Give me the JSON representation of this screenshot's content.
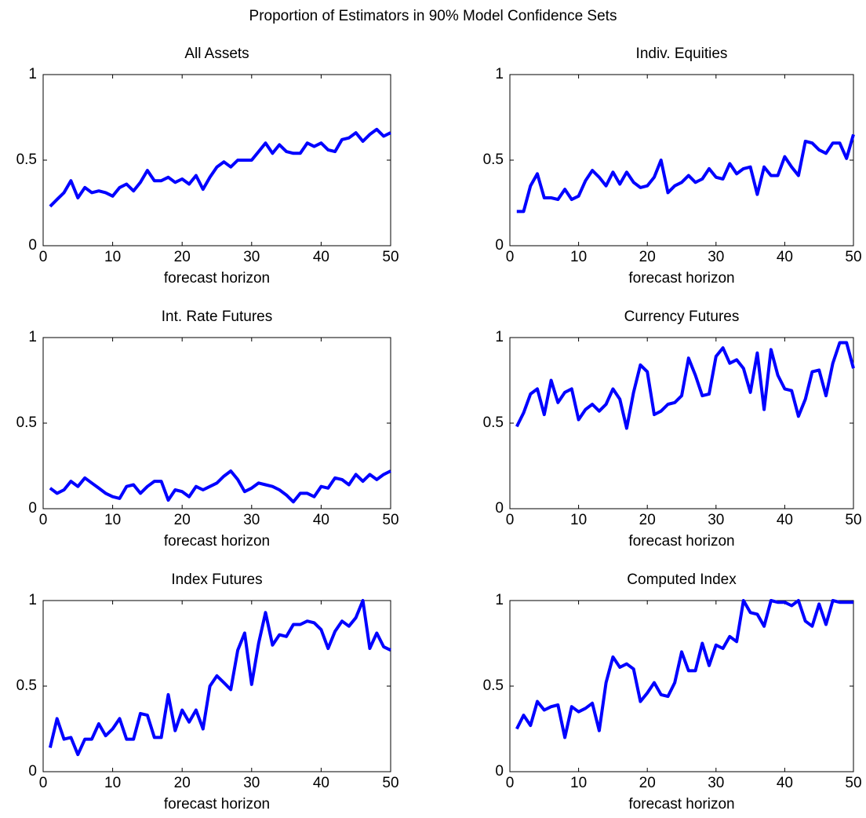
{
  "title": "Proportion of Estimators in 90% Model Confidence Sets",
  "chart_data": [
    {
      "type": "line",
      "title": "All Assets",
      "xlabel": "forecast horizon",
      "x": [
        1,
        2,
        3,
        4,
        5,
        6,
        7,
        8,
        9,
        10,
        11,
        12,
        13,
        14,
        15,
        16,
        17,
        18,
        19,
        20,
        21,
        22,
        23,
        24,
        25,
        26,
        27,
        28,
        29,
        30,
        31,
        32,
        33,
        34,
        35,
        36,
        37,
        38,
        39,
        40,
        41,
        42,
        43,
        44,
        45,
        46,
        47,
        48,
        49,
        50
      ],
      "values": [
        0.23,
        0.27,
        0.31,
        0.38,
        0.28,
        0.34,
        0.31,
        0.32,
        0.31,
        0.29,
        0.34,
        0.36,
        0.32,
        0.37,
        0.44,
        0.38,
        0.38,
        0.4,
        0.37,
        0.39,
        0.36,
        0.41,
        0.33,
        0.4,
        0.46,
        0.49,
        0.46,
        0.5,
        0.5,
        0.5,
        0.55,
        0.6,
        0.54,
        0.59,
        0.55,
        0.54,
        0.54,
        0.6,
        0.58,
        0.6,
        0.56,
        0.55,
        0.62,
        0.63,
        0.66,
        0.61,
        0.65,
        0.68,
        0.64,
        0.66
      ],
      "color": "#0000ff",
      "xlim": [
        0,
        50
      ],
      "ylim": [
        0,
        1
      ],
      "xticks": [
        0,
        10,
        20,
        30,
        40,
        50
      ],
      "yticks": [
        0,
        0.5,
        1
      ]
    },
    {
      "type": "line",
      "title": "Indiv. Equities",
      "xlabel": "forecast horizon",
      "x": [
        1,
        2,
        3,
        4,
        5,
        6,
        7,
        8,
        9,
        10,
        11,
        12,
        13,
        14,
        15,
        16,
        17,
        18,
        19,
        20,
        21,
        22,
        23,
        24,
        25,
        26,
        27,
        28,
        29,
        30,
        31,
        32,
        33,
        34,
        35,
        36,
        37,
        38,
        39,
        40,
        41,
        42,
        43,
        44,
        45,
        46,
        47,
        48,
        49,
        50
      ],
      "values": [
        0.2,
        0.2,
        0.35,
        0.42,
        0.28,
        0.28,
        0.27,
        0.33,
        0.27,
        0.29,
        0.38,
        0.44,
        0.4,
        0.35,
        0.43,
        0.36,
        0.43,
        0.37,
        0.34,
        0.35,
        0.4,
        0.5,
        0.31,
        0.35,
        0.37,
        0.41,
        0.37,
        0.39,
        0.45,
        0.4,
        0.39,
        0.48,
        0.42,
        0.45,
        0.46,
        0.3,
        0.46,
        0.41,
        0.41,
        0.52,
        0.46,
        0.41,
        0.61,
        0.6,
        0.56,
        0.54,
        0.6,
        0.6,
        0.51,
        0.65
      ],
      "color": "#0000ff",
      "xlim": [
        0,
        50
      ],
      "ylim": [
        0,
        1
      ],
      "xticks": [
        0,
        10,
        20,
        30,
        40,
        50
      ],
      "yticks": [
        0,
        0.5,
        1
      ]
    },
    {
      "type": "line",
      "title": "Int. Rate Futures",
      "xlabel": "forecast horizon",
      "x": [
        1,
        2,
        3,
        4,
        5,
        6,
        7,
        8,
        9,
        10,
        11,
        12,
        13,
        14,
        15,
        16,
        17,
        18,
        19,
        20,
        21,
        22,
        23,
        24,
        25,
        26,
        27,
        28,
        29,
        30,
        31,
        32,
        33,
        34,
        35,
        36,
        37,
        38,
        39,
        40,
        41,
        42,
        43,
        44,
        45,
        46,
        47,
        48,
        49,
        50
      ],
      "values": [
        0.12,
        0.09,
        0.11,
        0.16,
        0.13,
        0.18,
        0.15,
        0.12,
        0.09,
        0.07,
        0.06,
        0.13,
        0.14,
        0.09,
        0.13,
        0.16,
        0.16,
        0.05,
        0.11,
        0.1,
        0.07,
        0.13,
        0.11,
        0.13,
        0.15,
        0.19,
        0.22,
        0.17,
        0.1,
        0.12,
        0.15,
        0.14,
        0.13,
        0.11,
        0.08,
        0.04,
        0.09,
        0.09,
        0.07,
        0.13,
        0.12,
        0.18,
        0.17,
        0.14,
        0.2,
        0.16,
        0.2,
        0.17,
        0.2,
        0.22
      ],
      "color": "#0000ff",
      "xlim": [
        0,
        50
      ],
      "ylim": [
        0,
        1
      ],
      "xticks": [
        0,
        10,
        20,
        30,
        40,
        50
      ],
      "yticks": [
        0,
        0.5,
        1
      ]
    },
    {
      "type": "line",
      "title": "Currency Futures",
      "xlabel": "forecast horizon",
      "x": [
        1,
        2,
        3,
        4,
        5,
        6,
        7,
        8,
        9,
        10,
        11,
        12,
        13,
        14,
        15,
        16,
        17,
        18,
        19,
        20,
        21,
        22,
        23,
        24,
        25,
        26,
        27,
        28,
        29,
        30,
        31,
        32,
        33,
        34,
        35,
        36,
        37,
        38,
        39,
        40,
        41,
        42,
        43,
        44,
        45,
        46,
        47,
        48,
        49,
        50
      ],
      "values": [
        0.48,
        0.56,
        0.67,
        0.7,
        0.55,
        0.75,
        0.62,
        0.68,
        0.7,
        0.52,
        0.58,
        0.61,
        0.57,
        0.61,
        0.7,
        0.64,
        0.47,
        0.68,
        0.84,
        0.8,
        0.55,
        0.57,
        0.61,
        0.62,
        0.66,
        0.88,
        0.78,
        0.66,
        0.67,
        0.89,
        0.94,
        0.85,
        0.87,
        0.82,
        0.68,
        0.91,
        0.58,
        0.93,
        0.78,
        0.7,
        0.69,
        0.54,
        0.64,
        0.8,
        0.81,
        0.66,
        0.85,
        0.97,
        0.97,
        0.82
      ],
      "color": "#0000ff",
      "xlim": [
        0,
        50
      ],
      "ylim": [
        0,
        1
      ],
      "xticks": [
        0,
        10,
        20,
        30,
        40,
        50
      ],
      "yticks": [
        0,
        0.5,
        1
      ]
    },
    {
      "type": "line",
      "title": "Index Futures",
      "xlabel": "forecast horizon",
      "x": [
        1,
        2,
        3,
        4,
        5,
        6,
        7,
        8,
        9,
        10,
        11,
        12,
        13,
        14,
        15,
        16,
        17,
        18,
        19,
        20,
        21,
        22,
        23,
        24,
        25,
        26,
        27,
        28,
        29,
        30,
        31,
        32,
        33,
        34,
        35,
        36,
        37,
        38,
        39,
        40,
        41,
        42,
        43,
        44,
        45,
        46,
        47,
        48,
        49,
        50
      ],
      "values": [
        0.14,
        0.31,
        0.19,
        0.2,
        0.1,
        0.19,
        0.19,
        0.28,
        0.21,
        0.25,
        0.31,
        0.19,
        0.19,
        0.34,
        0.33,
        0.2,
        0.2,
        0.45,
        0.24,
        0.36,
        0.29,
        0.36,
        0.25,
        0.5,
        0.56,
        0.52,
        0.48,
        0.71,
        0.81,
        0.51,
        0.75,
        0.93,
        0.74,
        0.8,
        0.79,
        0.86,
        0.86,
        0.88,
        0.87,
        0.83,
        0.72,
        0.82,
        0.88,
        0.85,
        0.9,
        1.0,
        0.72,
        0.81,
        0.73,
        0.71
      ],
      "color": "#0000ff",
      "xlim": [
        0,
        50
      ],
      "ylim": [
        0,
        1
      ],
      "xticks": [
        0,
        10,
        20,
        30,
        40,
        50
      ],
      "yticks": [
        0,
        0.5,
        1
      ]
    },
    {
      "type": "line",
      "title": "Computed Index",
      "xlabel": "forecast horizon",
      "x": [
        1,
        2,
        3,
        4,
        5,
        6,
        7,
        8,
        9,
        10,
        11,
        12,
        13,
        14,
        15,
        16,
        17,
        18,
        19,
        20,
        21,
        22,
        23,
        24,
        25,
        26,
        27,
        28,
        29,
        30,
        31,
        32,
        33,
        34,
        35,
        36,
        37,
        38,
        39,
        40,
        41,
        42,
        43,
        44,
        45,
        46,
        47,
        48,
        49,
        50
      ],
      "values": [
        0.25,
        0.33,
        0.27,
        0.41,
        0.36,
        0.38,
        0.39,
        0.2,
        0.38,
        0.35,
        0.37,
        0.4,
        0.24,
        0.52,
        0.67,
        0.61,
        0.63,
        0.6,
        0.41,
        0.46,
        0.52,
        0.45,
        0.44,
        0.52,
        0.7,
        0.59,
        0.59,
        0.75,
        0.62,
        0.74,
        0.72,
        0.79,
        0.76,
        1.0,
        0.93,
        0.92,
        0.85,
        1.0,
        0.99,
        0.99,
        0.97,
        1.0,
        0.88,
        0.85,
        0.98,
        0.86,
        1.0,
        0.99,
        0.99,
        0.99
      ],
      "color": "#0000ff",
      "xlim": [
        0,
        50
      ],
      "ylim": [
        0,
        1
      ],
      "xticks": [
        0,
        10,
        20,
        30,
        40,
        50
      ],
      "yticks": [
        0,
        0.5,
        1
      ]
    }
  ]
}
